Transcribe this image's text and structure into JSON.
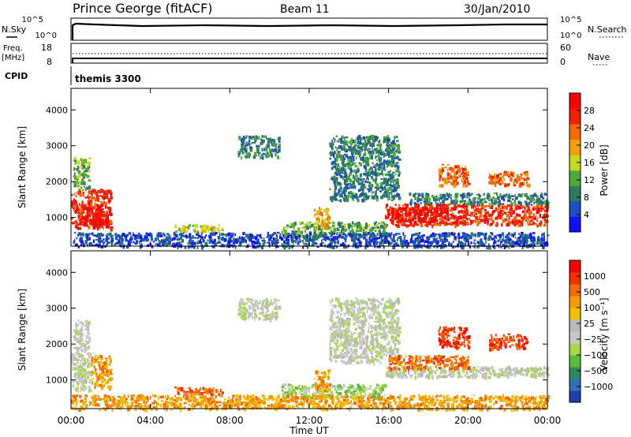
{
  "header": {
    "station": "Prince George (fitACF)",
    "beam": "Beam 11",
    "date": "30/Jan/2010"
  },
  "top_panels": {
    "nsky_label": "N.Sky",
    "nsky_ticks": [
      "10^5",
      "10^0"
    ],
    "nsearch_label": "N.Search",
    "freq_label_line1": "Freq.",
    "freq_label_line2": "[MHz]",
    "freq_ticks": [
      "18",
      "8"
    ],
    "nave_label": "Nave",
    "nave_ticks": [
      "60",
      "0"
    ],
    "cpid_label": "CPID",
    "cpid_value": "themis 3300"
  },
  "power_colorbar": {
    "label": "Power [dB]",
    "ticks": [
      "28",
      "24",
      "20",
      "16",
      "12",
      "8",
      "4"
    ],
    "colors": [
      "#1010ff",
      "#1c4fbf",
      "#2e7a5c",
      "#4eaa3a",
      "#c8d820",
      "#f2a000",
      "#f26a00",
      "#f02000",
      "#ff0000"
    ]
  },
  "velocity_colorbar": {
    "label": "Velocity [m s⁻¹]",
    "ticks": [
      "1000",
      "500",
      "100",
      "25",
      "−25",
      "−100",
      "−500",
      "−1000"
    ],
    "colors": [
      "#1f3fa8",
      "#2f6fb5",
      "#2e8b57",
      "#5dbb3a",
      "#a8d84a",
      "#c8c8c8",
      "#b8b8b8",
      "#f2c200",
      "#f29a00",
      "#f26a00",
      "#f03000",
      "#ff0000"
    ]
  },
  "chart_data": [
    {
      "type": "heatmap",
      "panel": "power",
      "ylabel": "Slant Range [km]",
      "ylim": [
        200,
        4600
      ],
      "yticks": [
        "4000",
        "3000",
        "2000",
        "1000"
      ],
      "xlim": [
        0,
        24
      ],
      "xticks": [
        "00:00",
        "04:00",
        "08:00",
        "12:00",
        "16:00",
        "20:00",
        "00:00"
      ],
      "xlabel": "Time UT",
      "regions": [
        {
          "t0": 0.0,
          "t1": 2.0,
          "r0": 700,
          "r1": 1800,
          "level": 7
        },
        {
          "t0": 0.5,
          "t1": 1.6,
          "r0": 800,
          "r1": 1400,
          "level": 8
        },
        {
          "t0": 0.1,
          "t1": 0.9,
          "r0": 1800,
          "r1": 2700,
          "level": 3
        },
        {
          "t0": 5.2,
          "t1": 7.6,
          "r0": 620,
          "r1": 820,
          "level": 4
        },
        {
          "t0": 8.4,
          "t1": 10.5,
          "r0": 2700,
          "r1": 3300,
          "level": 2
        },
        {
          "t0": 10.6,
          "t1": 15.8,
          "r0": 500,
          "r1": 900,
          "level": 3
        },
        {
          "t0": 12.2,
          "t1": 13.0,
          "r0": 700,
          "r1": 1300,
          "level": 5
        },
        {
          "t0": 13.0,
          "t1": 16.5,
          "r0": 1500,
          "r1": 3300,
          "level": 2
        },
        {
          "t0": 15.8,
          "t1": 24.0,
          "r0": 800,
          "r1": 1400,
          "level": 7
        },
        {
          "t0": 16.0,
          "t1": 19.0,
          "r0": 900,
          "r1": 1300,
          "level": 8
        },
        {
          "t0": 17.0,
          "t1": 24.0,
          "r0": 1400,
          "r1": 1700,
          "level": 2
        },
        {
          "t0": 18.5,
          "t1": 20.0,
          "r0": 1900,
          "r1": 2500,
          "level": 6
        },
        {
          "t0": 21.0,
          "t1": 23.0,
          "r0": 1900,
          "r1": 2300,
          "level": 6
        },
        {
          "t0": 0.0,
          "t1": 24.0,
          "r0": 200,
          "r1": 600,
          "level": 1
        }
      ]
    },
    {
      "type": "heatmap",
      "panel": "velocity",
      "ylabel": "Slant Range [km]",
      "ylim": [
        200,
        4600
      ],
      "yticks": [
        "4000",
        "3000",
        "2000",
        "1000"
      ],
      "xlim": [
        0,
        24
      ],
      "xticks": [
        "00:00",
        "04:00",
        "08:00",
        "12:00",
        "16:00",
        "20:00",
        "00:00"
      ],
      "xlabel": "Time UT",
      "regions": [
        {
          "t0": 0.0,
          "t1": 1.0,
          "r0": 700,
          "r1": 1800,
          "level": 5
        },
        {
          "t0": 1.0,
          "t1": 2.0,
          "r0": 800,
          "r1": 1700,
          "level": 8
        },
        {
          "t0": 0.1,
          "t1": 0.9,
          "r0": 1800,
          "r1": 2700,
          "level": 5
        },
        {
          "t0": 5.2,
          "t1": 7.6,
          "r0": 620,
          "r1": 820,
          "level": 9
        },
        {
          "t0": 8.4,
          "t1": 10.5,
          "r0": 2700,
          "r1": 3300,
          "level": 5
        },
        {
          "t0": 10.6,
          "t1": 15.8,
          "r0": 500,
          "r1": 900,
          "level": 4
        },
        {
          "t0": 12.2,
          "t1": 13.0,
          "r0": 700,
          "r1": 1300,
          "level": 8
        },
        {
          "t0": 13.0,
          "t1": 16.5,
          "r0": 1500,
          "r1": 3300,
          "level": 5
        },
        {
          "t0": 15.8,
          "t1": 24.0,
          "r0": 1100,
          "r1": 1400,
          "level": 5
        },
        {
          "t0": 16.0,
          "t1": 20.0,
          "r0": 1300,
          "r1": 1700,
          "level": 9
        },
        {
          "t0": 18.5,
          "t1": 20.0,
          "r0": 1900,
          "r1": 2500,
          "level": 10
        },
        {
          "t0": 21.0,
          "t1": 23.0,
          "r0": 1900,
          "r1": 2300,
          "level": 10
        },
        {
          "t0": 0.0,
          "t1": 24.0,
          "r0": 200,
          "r1": 600,
          "level": 8
        }
      ]
    }
  ]
}
